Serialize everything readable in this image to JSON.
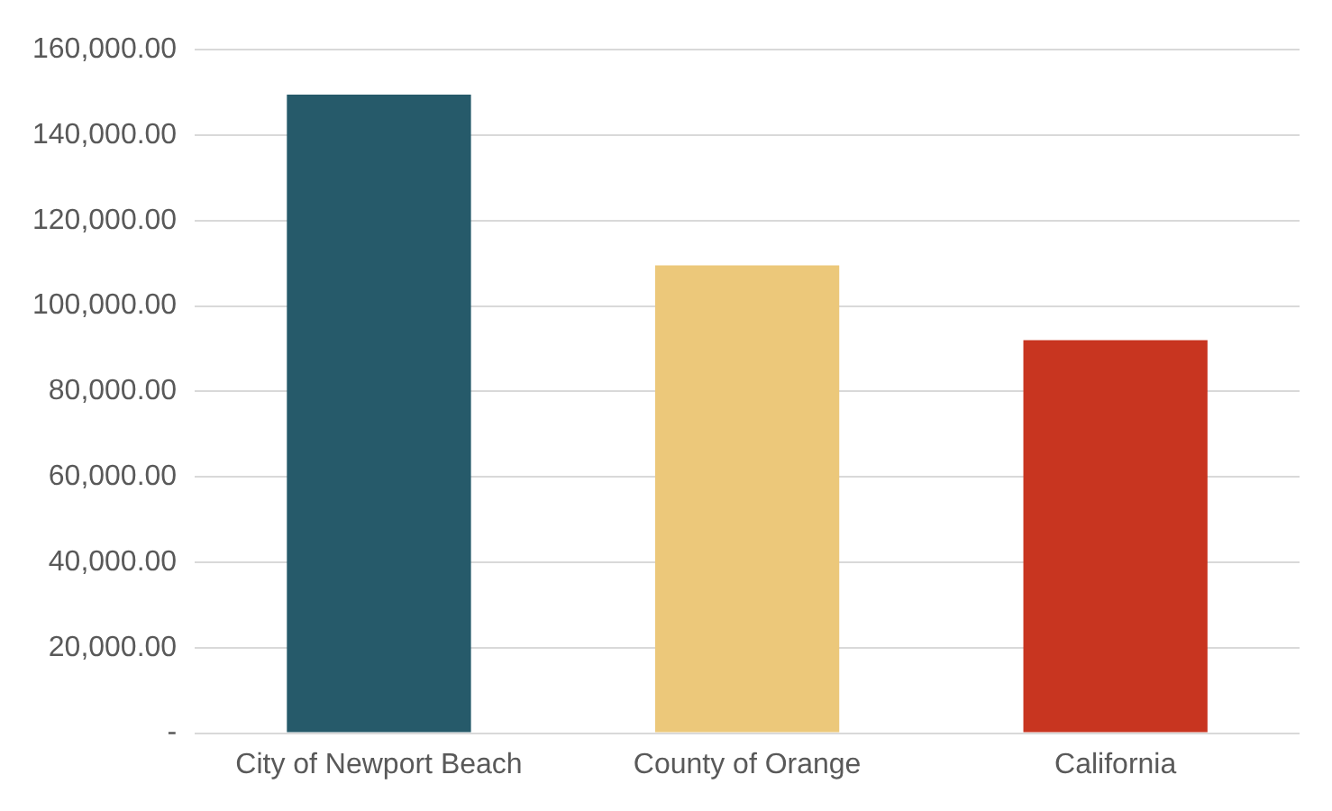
{
  "chart_data": {
    "type": "bar",
    "categories": [
      "City of Newport Beach",
      "County of Orange",
      "California"
    ],
    "values": [
      149500,
      109500,
      92000
    ],
    "colors": [
      "#265a6a",
      "#ecc87a",
      "#c83520"
    ],
    "ylim": [
      0,
      160000
    ],
    "yticks": [
      {
        "value": 0,
        "label": "-"
      },
      {
        "value": 20000,
        "label": "20,000.00"
      },
      {
        "value": 40000,
        "label": "40,000.00"
      },
      {
        "value": 60000,
        "label": "60,000.00"
      },
      {
        "value": 80000,
        "label": "80,000.00"
      },
      {
        "value": 100000,
        "label": "100,000.00"
      },
      {
        "value": 120000,
        "label": "120,000.00"
      },
      {
        "value": 140000,
        "label": "140,000.00"
      },
      {
        "value": 160000,
        "label": "160,000.00"
      }
    ],
    "grid": "y",
    "legend": false
  }
}
